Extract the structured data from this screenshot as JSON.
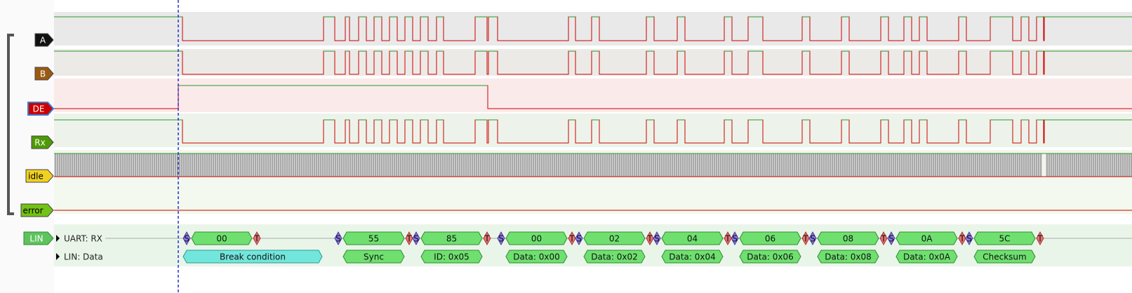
{
  "channels": [
    "A",
    "B",
    "DE",
    "Rx",
    "idle",
    "error"
  ],
  "decoder": {
    "name": "LIN",
    "rows": [
      {
        "label": "UART: RX",
        "annotations": [
          "S",
          "00",
          "T",
          "S",
          "55",
          "T",
          "S",
          "85",
          "T",
          "S",
          "00",
          "T",
          "S",
          "02",
          "T",
          "S",
          "04",
          "T",
          "S",
          "06",
          "T",
          "S",
          "08",
          "T",
          "S",
          "0A",
          "T",
          "S",
          "5C",
          "T"
        ]
      },
      {
        "label": "LIN: Data",
        "annotations": [
          "Break condition",
          "Sync",
          "ID: 0x05",
          "Data: 0x00",
          "Data: 0x02",
          "Data: 0x04",
          "Data: 0x06",
          "Data: 0x08",
          "Data: 0x0A",
          "Checksum"
        ]
      }
    ]
  }
}
